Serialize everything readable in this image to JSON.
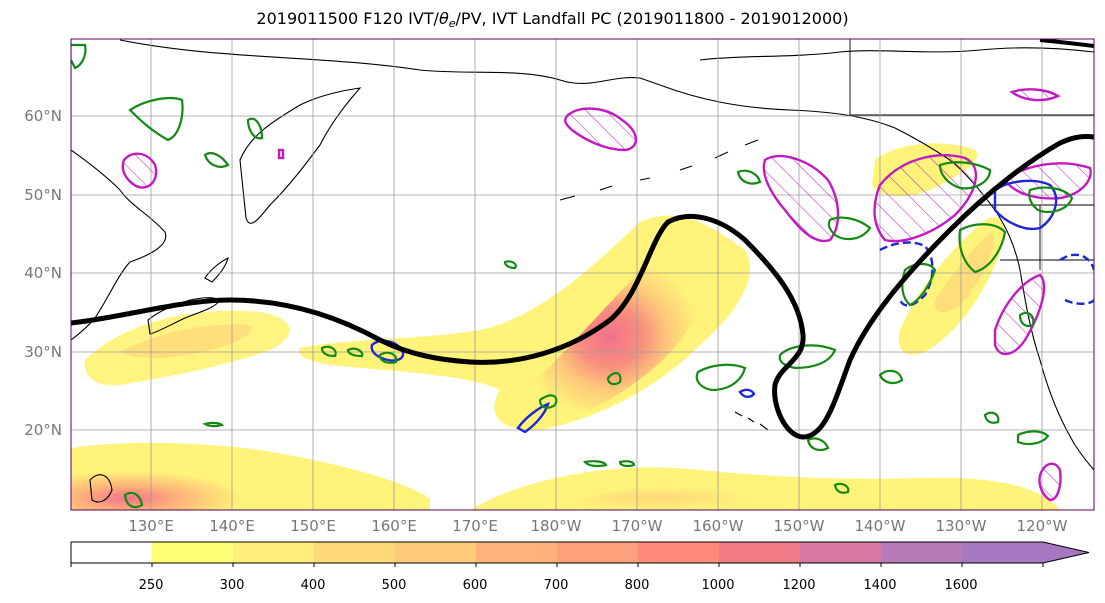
{
  "title": {
    "prefix": "2019011500 F120 IVT/",
    "theta": "θ",
    "sub": "e",
    "suffix": "/PV, IVT Landfall PC (2019011800 - 2019012000)"
  },
  "map": {
    "lat_labels": [
      "60°N",
      "50°N",
      "40°N",
      "30°N",
      "20°N"
    ],
    "lon_labels": [
      "130°E",
      "140°E",
      "150°E",
      "160°E",
      "170°E",
      "180°W",
      "170°W",
      "160°W",
      "150°W",
      "140°W",
      "130°W",
      "120°W"
    ],
    "gridlines": true,
    "colors": {
      "jet_line": "#000000",
      "pv_contour": "#138a13",
      "theta_e_contour": "#1f27d6",
      "landfall_pc": "#c21ac2",
      "ivt_low": "#fff37a",
      "ivt_high": "#f2728a"
    }
  },
  "colorbar": {
    "ticks": [
      "250",
      "300",
      "400",
      "500",
      "600",
      "700",
      "800",
      "1000",
      "1200",
      "1400",
      "1600"
    ],
    "colors": [
      "#ffffff",
      "#ffff75",
      "#ffef7a",
      "#ffd87a",
      "#ffc97a",
      "#ffb37a",
      "#ffa07c",
      "#ff8a7a",
      "#f07a85",
      "#d778a0",
      "#b87ab8",
      "#a678c2"
    ]
  }
}
